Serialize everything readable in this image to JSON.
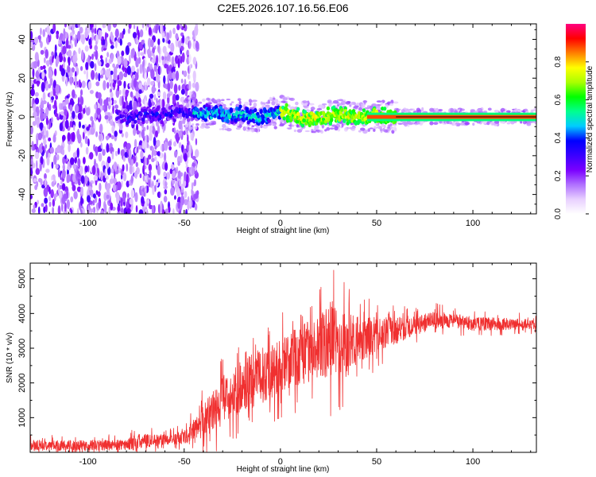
{
  "figure_title": "C2E5.2026.107.16.56.E06",
  "chart_data": [
    {
      "type": "heatmap",
      "title": "C2E5.2026.107.16.56.E06",
      "xlabel": "Height of straight line (km)",
      "ylabel": "Frequency (Hz)",
      "xlim": [
        -130,
        133
      ],
      "ylim": [
        -50,
        48
      ],
      "xticks": [
        -100,
        -50,
        0,
        50,
        100
      ],
      "yticks": [
        -40,
        -20,
        0,
        20,
        40
      ],
      "xtick_labels": [
        "-100",
        "-50",
        "0",
        "50",
        "100"
      ],
      "ytick_labels": [
        "-40",
        "-20",
        "0",
        "20",
        "40"
      ],
      "colorbar": {
        "label": "Normalized spectral amplitude",
        "range": [
          0.0,
          1.0
        ],
        "ticks": [
          0.0,
          0.2,
          0.4,
          0.6,
          0.8
        ],
        "tick_labels": [
          "0.0",
          "0.2",
          "0.4",
          "0.6",
          "0.8"
        ],
        "colormap": [
          "#ffffff",
          "#e8d0ff",
          "#b070ff",
          "#7a00ff",
          "#3a00ff",
          "#0000ff",
          "#00ccff",
          "#00ff90",
          "#00ff00",
          "#aaff00",
          "#ffff00",
          "#ff8000",
          "#ff0000",
          "#ff0080"
        ]
      },
      "ridge_center_hz": [
        {
          "x": -80,
          "y": 0
        },
        {
          "x": -50,
          "y": 2
        },
        {
          "x": -40,
          "y": 2
        },
        {
          "x": -30,
          "y": 1
        },
        {
          "x": -20,
          "y": 1
        },
        {
          "x": -10,
          "y": 0
        },
        {
          "x": 0,
          "y": 3
        },
        {
          "x": 10,
          "y": 0
        },
        {
          "x": 20,
          "y": 0
        },
        {
          "x": 30,
          "y": 1
        },
        {
          "x": 40,
          "y": 0
        },
        {
          "x": 50,
          "y": 1
        },
        {
          "x": 60,
          "y": 0
        },
        {
          "x": 133,
          "y": 0
        }
      ],
      "noise_region_km": [
        -130,
        -43
      ]
    },
    {
      "type": "line",
      "title": "",
      "xlabel": "Height of straight line (km)",
      "ylabel": "SNR (10 * v/v)",
      "xlim": [
        -130,
        133
      ],
      "ylim": [
        0,
        5450
      ],
      "xticks": [
        -100,
        -50,
        0,
        50,
        100
      ],
      "yticks": [
        1000,
        2000,
        3000,
        4000,
        5000
      ],
      "xtick_labels": [
        "-100",
        "-50",
        "0",
        "50",
        "100"
      ],
      "ytick_labels": [
        "1000",
        "2000",
        "3000",
        "4000",
        "5000"
      ],
      "series": [
        {
          "name": "SNR",
          "color": "#f03030",
          "envelope": {
            "x": [
              -130,
              -100,
              -80,
              -75,
              -70,
              -60,
              -50,
              -45,
              -40,
              -35,
              -30,
              -25,
              -20,
              -10,
              0,
              10,
              20,
              25,
              28,
              30,
              35,
              40,
              50,
              60,
              70,
              80,
              90,
              100,
              110,
              120,
              133
            ],
            "mean": [
              200,
              200,
              220,
              280,
              330,
              380,
              420,
              600,
              900,
              1200,
              1500,
              1700,
              1900,
              2200,
              2500,
              2800,
              3000,
              3200,
              3300,
              3100,
              3100,
              3200,
              3400,
              3500,
              3650,
              3800,
              3800,
              3700,
              3700,
              3700,
              3650
            ],
            "amp": [
              150,
              150,
              150,
              250,
              200,
              150,
              200,
              350,
              500,
              650,
              700,
              700,
              750,
              800,
              800,
              850,
              900,
              1100,
              1200,
              1100,
              900,
              700,
              500,
              400,
              300,
              250,
              200,
              200,
              180,
              180,
              150
            ]
          }
        }
      ]
    }
  ]
}
